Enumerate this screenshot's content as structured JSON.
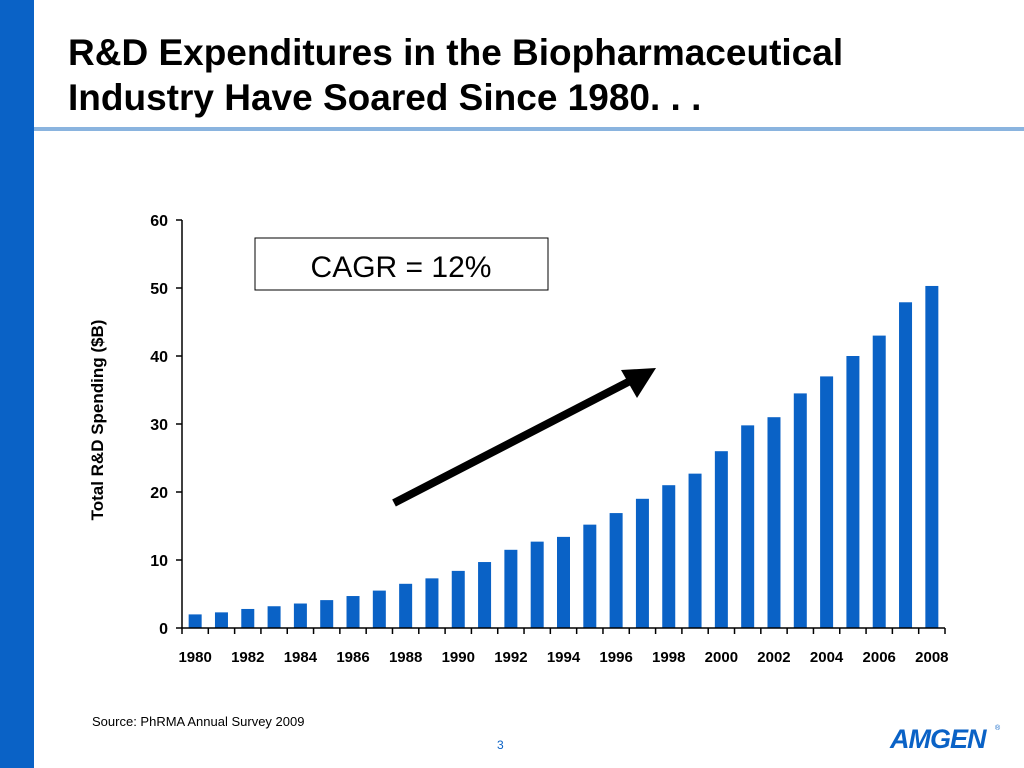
{
  "slide": {
    "title": "R&D Expenditures in the Biopharmaceutical Industry Have Soared Since 1980. . .",
    "source": "Source: PhRMA Annual Survey 2009",
    "page_number": "3",
    "logo_text": "AMGEN",
    "logo_mark": "®",
    "accent_color": "#0a62c6",
    "rule_color": "#8ab4df"
  },
  "chart_data": {
    "type": "bar",
    "title": "",
    "xlabel": "",
    "ylabel": "Total R&D Spending ($B)",
    "ylim": [
      0,
      60
    ],
    "yticks": [
      0,
      10,
      20,
      30,
      40,
      50,
      60
    ],
    "categories": [
      "1980",
      "1981",
      "1982",
      "1983",
      "1984",
      "1985",
      "1986",
      "1987",
      "1988",
      "1989",
      "1990",
      "1991",
      "1992",
      "1993",
      "1994",
      "1995",
      "1996",
      "1997",
      "1998",
      "1999",
      "2000",
      "2001",
      "2002",
      "2003",
      "2004",
      "2005",
      "2006",
      "2007",
      "2008"
    ],
    "xtick_labels": [
      "1980",
      "1982",
      "1984",
      "1986",
      "1988",
      "1990",
      "1992",
      "1994",
      "1996",
      "1998",
      "2000",
      "2002",
      "2004",
      "2006",
      "2008"
    ],
    "values": [
      2.0,
      2.3,
      2.8,
      3.2,
      3.6,
      4.1,
      4.7,
      5.5,
      6.5,
      7.3,
      8.4,
      9.7,
      11.5,
      12.7,
      13.4,
      15.2,
      16.9,
      19.0,
      21.0,
      22.7,
      26.0,
      29.8,
      31.0,
      34.5,
      37.0,
      40.0,
      43.0,
      47.9,
      50.3
    ],
    "bar_color": "#0a62c6",
    "grid": false,
    "legend": "none",
    "annotations": [
      {
        "text": "CAGR = 12%"
      }
    ]
  }
}
